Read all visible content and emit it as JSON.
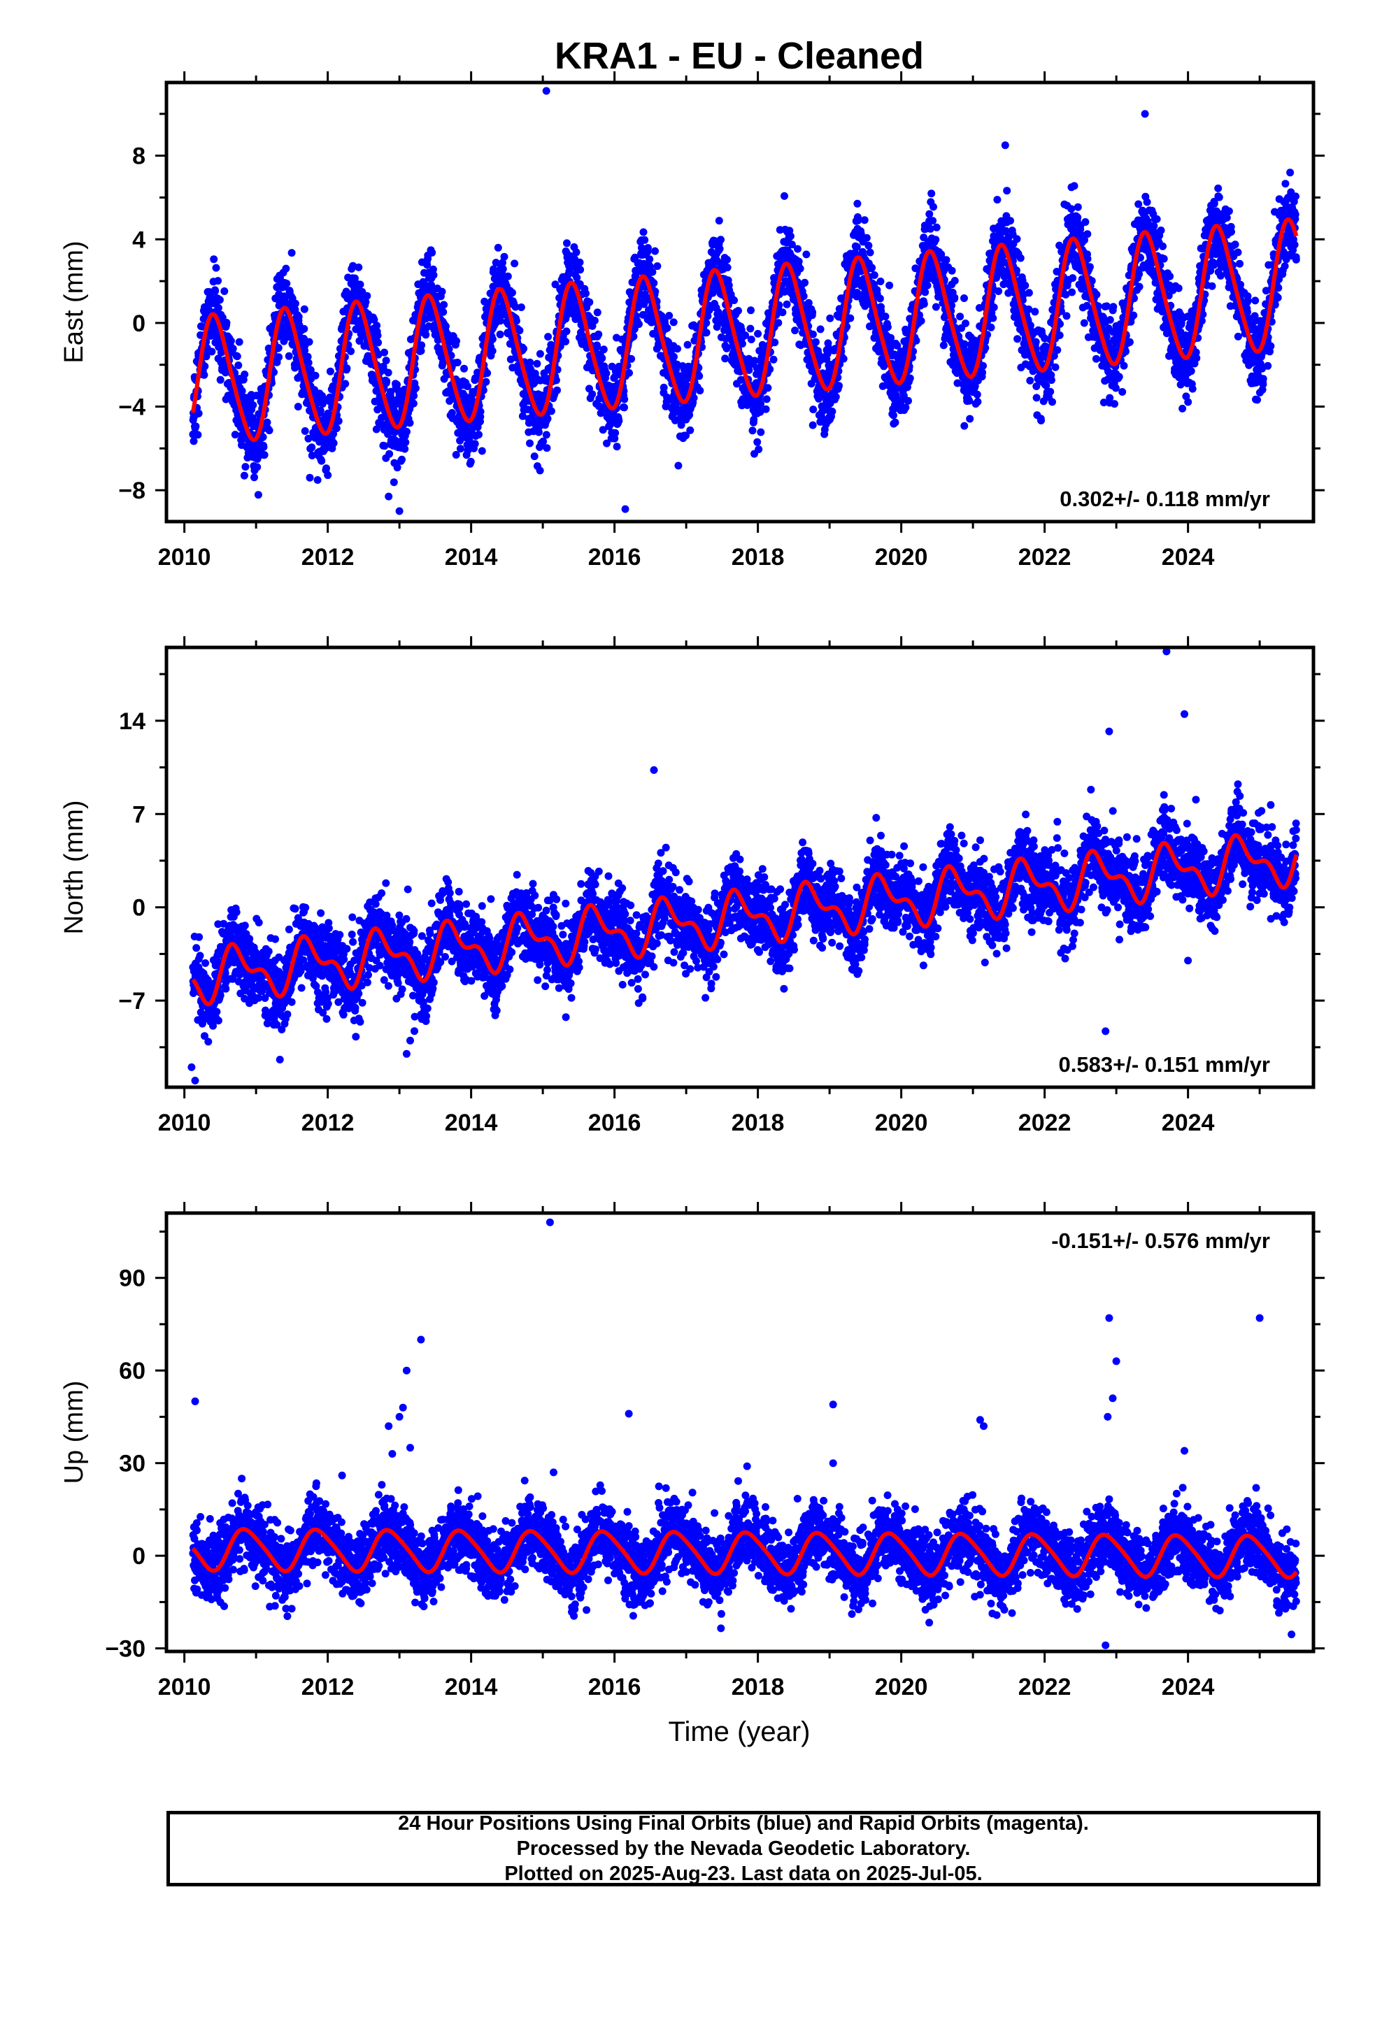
{
  "chart_data": [
    {
      "type": "scatter",
      "title": "KRA1  - EU - Cleaned",
      "ylabel": "East (mm)",
      "xlabel": "",
      "xlim": [
        2009.75,
        2025.75
      ],
      "ylim": [
        -9.5,
        11.5
      ],
      "yticks": [
        -8,
        -4,
        0,
        4,
        8
      ],
      "xticks": [
        2010,
        2012,
        2014,
        2016,
        2018,
        2020,
        2022,
        2024
      ],
      "rate_label": "0.302+/- 0.118 mm/yr",
      "rate_position": "bottom-right",
      "fit": {
        "slope_mm_per_yr": 0.302,
        "intercept_mm": -0.5,
        "annual_amp_mm": 3.0,
        "annual_phase_yr": 0.18,
        "semiannual_amp_mm": 0.4,
        "semiannual_phase_yr": 0.2,
        "t0": 2017.9
      },
      "scatter": {
        "noise_mm": 1.0
      },
      "outliers": [
        [
          2015.05,
          11.1
        ],
        [
          2023.4,
          10.0
        ],
        [
          2021.45,
          8.5
        ],
        [
          2012.85,
          -8.3
        ],
        [
          2013.0,
          -9.0
        ],
        [
          2016.15,
          -8.9
        ],
        [
          2011.75,
          -7.4
        ]
      ],
      "series": [
        {
          "name": "Final Orbits",
          "color": "#0000ff",
          "style": "points"
        },
        {
          "name": "Model fit",
          "color": "#ff0000",
          "style": "line"
        }
      ]
    },
    {
      "type": "scatter",
      "title": "",
      "ylabel": "North (mm)",
      "xlabel": "",
      "xlim": [
        2009.75,
        2025.75
      ],
      "ylim": [
        -13.5,
        19.5
      ],
      "yticks": [
        -7,
        0,
        7,
        14
      ],
      "xticks": [
        2010,
        2012,
        2014,
        2016,
        2018,
        2020,
        2022,
        2024
      ],
      "rate_label": "0.583+/- 0.151 mm/yr",
      "rate_position": "bottom-right",
      "fit": {
        "slope_mm_per_yr": 0.583,
        "intercept_mm": -0.7,
        "annual_amp_mm": 1.6,
        "annual_phase_yr": 0.5,
        "semiannual_amp_mm": 0.9,
        "semiannual_phase_yr": 0.5,
        "t0": 2017.9
      },
      "scatter": {
        "noise_mm": 1.4
      },
      "outliers": [
        [
          2023.7,
          19.2
        ],
        [
          2023.95,
          14.5
        ],
        [
          2022.9,
          13.2
        ],
        [
          2016.55,
          10.3
        ],
        [
          2010.1,
          -12.0
        ],
        [
          2010.15,
          -13.0
        ],
        [
          2022.85,
          -9.3
        ],
        [
          2013.1,
          -11.0
        ],
        [
          2013.15,
          -10.0
        ],
        [
          2024.0,
          -4.0
        ]
      ],
      "series": [
        {
          "name": "Final Orbits",
          "color": "#0000ff",
          "style": "points"
        },
        {
          "name": "Model fit",
          "color": "#ff0000",
          "style": "line"
        }
      ]
    },
    {
      "type": "scatter",
      "title": "",
      "ylabel": "Up (mm)",
      "xlabel": "Time (year)",
      "xlim": [
        2009.75,
        2025.75
      ],
      "ylim": [
        -31,
        111
      ],
      "yticks": [
        -30,
        0,
        30,
        60,
        90
      ],
      "xticks": [
        2010,
        2012,
        2014,
        2016,
        2018,
        2020,
        2022,
        2024
      ],
      "rate_label": "-0.151+/- 0.576 mm/yr",
      "rate_position": "top-right",
      "fit": {
        "slope_mm_per_yr": -0.151,
        "intercept_mm": 1.0,
        "annual_amp_mm": 6.5,
        "annual_phase_yr": 0.62,
        "semiannual_amp_mm": 1.0,
        "semiannual_phase_yr": 0.1,
        "t0": 2017.9
      },
      "scatter": {
        "noise_mm": 5.5
      },
      "outliers": [
        [
          2010.15,
          50
        ],
        [
          2015.1,
          108
        ],
        [
          2013.3,
          70
        ],
        [
          2013.1,
          60
        ],
        [
          2013.05,
          48
        ],
        [
          2013.0,
          45
        ],
        [
          2012.85,
          42
        ],
        [
          2012.9,
          33
        ],
        [
          2013.15,
          35
        ],
        [
          2016.2,
          46
        ],
        [
          2019.05,
          49
        ],
        [
          2021.1,
          44
        ],
        [
          2021.15,
          42
        ],
        [
          2022.9,
          77
        ],
        [
          2023.0,
          63
        ],
        [
          2022.95,
          51
        ],
        [
          2022.88,
          45
        ],
        [
          2023.95,
          34
        ],
        [
          2025.0,
          77
        ],
        [
          2022.85,
          -29
        ],
        [
          2015.15,
          27
        ],
        [
          2019.05,
          30
        ],
        [
          2017.85,
          29
        ],
        [
          2010.8,
          25
        ],
        [
          2012.2,
          26
        ],
        [
          2024.95,
          22
        ]
      ],
      "series": [
        {
          "name": "Final Orbits",
          "color": "#0000ff",
          "style": "points"
        },
        {
          "name": "Model fit",
          "color": "#ff0000",
          "style": "line"
        }
      ]
    }
  ],
  "footer": {
    "line1": "24 Hour Positions Using Final Orbits (blue) and Rapid Orbits (magenta).",
    "line2": "Processed by the Nevada Geodetic Laboratory.",
    "line3": "Plotted on 2025-Aug-23. Last data on 2025-Jul-05."
  },
  "colors": {
    "points": "#0000ff",
    "fit": "#ff0000",
    "frame": "#000000"
  },
  "data_range": {
    "start": 2010.12,
    "end": 2025.51
  }
}
